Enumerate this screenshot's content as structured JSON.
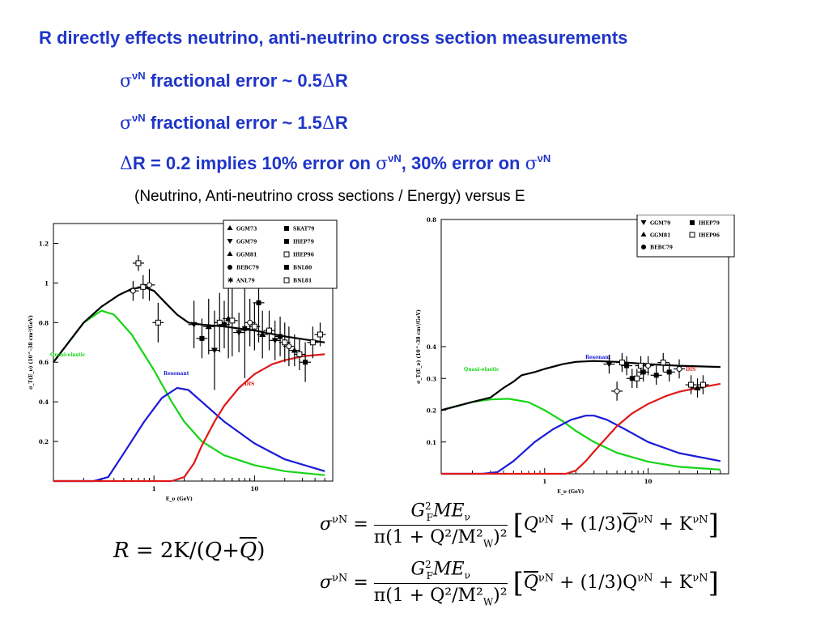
{
  "slide": {
    "title": "R directly effects neutrino, anti-neutrino cross section measurements",
    "bullet1": {
      "sigma": "σ",
      "sup": "νN",
      "text": " fractional error ~ 0.5",
      "delta": "Δ",
      "tail": "R"
    },
    "bullet2": {
      "sigma": "σ",
      "sup": "νN",
      "text": " fractional error ~ 1.5",
      "delta": "Δ",
      "tail": "R"
    },
    "bullet3": {
      "delta": "Δ",
      "text_a": "R = 0.2 implies 10% error on ",
      "sigma1": "σ",
      "sup1": "νN",
      "text_b": ", 30% error on ",
      "sigma2": "σ",
      "sup2": "νN"
    },
    "caption": "(Neutrino, Anti-neutrino cross sections / Energy) versus E"
  },
  "equations": {
    "R_lhs": "R",
    "R_eq": "= 2K/(",
    "R_Q": "Q",
    "R_plus": "+",
    "R_Qbar": "Q",
    "R_close": ")",
    "eq1_lhs": "σ",
    "eq1_sup": "νN",
    "eq1_num": "G",
    "eq1_num_sup": "2",
    "eq1_num_sub": "F",
    "eq1_num_rest": "ME",
    "eq1_num_nu": "ν",
    "eq1_den": "π(1 + Q²/M²",
    "eq1_den_sub": "W",
    "eq1_den_end": ")²",
    "eq1_bracket": "Q",
    "eq1_b_sup": "νN",
    "eq1_b_mid": " + (1/3)",
    "eq1_b_q": "Q",
    "eq1_b_sup2": "νN",
    "eq1_b_k": " + K",
    "eq1_b_sup3": "νN",
    "eq2_lhs": "σ",
    "eq2_sup": "νN",
    "eq2_bracket": "Q",
    "eq2_b_sup": "νN",
    "eq2_b_mid": " + (1/3)Q",
    "eq2_b_sup2": "νN",
    "eq2_b_k": " + K",
    "eq2_b_sup3": "νN"
  },
  "chart_data": [
    {
      "type": "line",
      "title": "",
      "xlabel": "E_ν (GeV)",
      "ylabel": "σ_T(E_ν) (10^-38 cm²/GeV)",
      "xscale": "log",
      "xlim": [
        0.1,
        60
      ],
      "ylim": [
        0,
        1.3
      ],
      "yticks": [
        "0.2",
        "0.4",
        "0.6",
        "0.8",
        "1",
        "1.2"
      ],
      "xticks": [
        "1",
        "10"
      ],
      "legend_position": "top-right",
      "legend": [
        "GGM73",
        "SKAT79",
        "GGM79",
        "IHEP79",
        "GGM81",
        "IHEP96",
        "BEBC79",
        "BNL80",
        "ANL79",
        "BNL81"
      ],
      "series": [
        {
          "name": "Quasi-elastic",
          "color": "#16d416",
          "x": [
            0.1,
            0.2,
            0.3,
            0.4,
            0.6,
            1,
            1.5,
            2,
            3,
            5,
            10,
            20,
            50
          ],
          "y": [
            0.6,
            0.8,
            0.86,
            0.84,
            0.74,
            0.56,
            0.4,
            0.3,
            0.2,
            0.13,
            0.08,
            0.05,
            0.03
          ]
        },
        {
          "name": "Resonant",
          "color": "#1a1ad8",
          "x": [
            0.1,
            0.25,
            0.35,
            0.5,
            0.8,
            1.2,
            1.7,
            2.2,
            3,
            5,
            10,
            20,
            50
          ],
          "y": [
            0,
            0,
            0.02,
            0.14,
            0.3,
            0.42,
            0.47,
            0.46,
            0.4,
            0.3,
            0.19,
            0.11,
            0.05
          ]
        },
        {
          "name": "DIS",
          "color": "#e01818",
          "x": [
            0.1,
            1.5,
            2,
            2.5,
            3,
            4,
            5,
            7,
            10,
            15,
            20,
            30,
            50
          ],
          "y": [
            0,
            0,
            0.02,
            0.09,
            0.18,
            0.3,
            0.38,
            0.47,
            0.54,
            0.59,
            0.61,
            0.63,
            0.64
          ]
        },
        {
          "name": "Total",
          "color": "#000000",
          "x": [
            0.1,
            0.2,
            0.3,
            0.45,
            0.6,
            0.8,
            1,
            1.3,
            1.7,
            2.2,
            3,
            5,
            10,
            20,
            50
          ],
          "y": [
            0.6,
            0.8,
            0.88,
            0.94,
            0.97,
            0.98,
            0.96,
            0.9,
            0.84,
            0.8,
            0.79,
            0.78,
            0.76,
            0.73,
            0.7
          ]
        }
      ],
      "points": {
        "x": [
          0.7,
          0.62,
          0.78,
          0.9,
          1.1,
          2.5,
          3.0,
          3.5,
          4,
          4.5,
          5,
          5.5,
          6,
          7,
          8,
          9,
          10,
          11,
          12,
          14,
          16,
          18,
          20,
          22,
          25,
          28,
          32,
          38,
          45
        ],
        "y": [
          1.1,
          0.96,
          0.98,
          0.99,
          0.8,
          0.79,
          0.72,
          0.78,
          0.66,
          0.8,
          0.79,
          0.82,
          0.81,
          0.75,
          0.77,
          0.8,
          0.78,
          0.9,
          0.74,
          0.76,
          0.71,
          0.73,
          0.7,
          0.68,
          0.66,
          0.64,
          0.6,
          0.7,
          0.74
        ],
        "yerr": [
          0.04,
          0.05,
          0.06,
          0.08,
          0.1,
          0.12,
          0.1,
          0.14,
          0.2,
          0.15,
          0.12,
          0.2,
          0.18,
          0.1,
          0.25,
          0.12,
          0.12,
          0.2,
          0.12,
          0.1,
          0.1,
          0.1,
          0.1,
          0.1,
          0.08,
          0.08,
          0.1,
          0.08,
          0.06
        ]
      },
      "annotations": [
        "Quasi-elastic",
        "Resonant",
        "DIS"
      ]
    },
    {
      "type": "line",
      "title": "",
      "xlabel": "E_ν (GeV)",
      "ylabel": "σ_T(E_ν) (10^-38 cm²/GeV)",
      "xscale": "log",
      "xlim": [
        0.1,
        60
      ],
      "ylim": [
        0,
        0.8
      ],
      "yticks": [
        "0.1",
        "0.2",
        "0.3",
        "0.4",
        "0.8"
      ],
      "xticks": [
        "1",
        "10"
      ],
      "legend_position": "top-right",
      "legend": [
        "GGM79",
        "IHEP79",
        "GGM81",
        "IHEP96",
        "BEBC79"
      ],
      "series": [
        {
          "name": "Quasi-elastic",
          "color": "#16d416",
          "x": [
            0.1,
            0.2,
            0.3,
            0.45,
            0.7,
            1,
            1.5,
            2,
            3,
            5,
            10,
            20,
            50
          ],
          "y": [
            0.2,
            0.226,
            0.234,
            0.236,
            0.225,
            0.2,
            0.165,
            0.135,
            0.1,
            0.066,
            0.038,
            0.022,
            0.013
          ]
        },
        {
          "name": "Resonant",
          "color": "#1a1ad8",
          "x": [
            0.1,
            0.25,
            0.35,
            0.5,
            0.8,
            1.2,
            1.8,
            2.5,
            3,
            4,
            6,
            10,
            20,
            50
          ],
          "y": [
            0,
            0,
            0.005,
            0.04,
            0.1,
            0.14,
            0.17,
            0.183,
            0.183,
            0.17,
            0.14,
            0.1,
            0.065,
            0.04
          ]
        },
        {
          "name": "DIS",
          "color": "#e01818",
          "x": [
            0.1,
            1.6,
            2,
            2.5,
            3,
            4,
            5,
            7,
            10,
            15,
            20,
            30,
            50
          ],
          "y": [
            0,
            0,
            0.01,
            0.04,
            0.07,
            0.115,
            0.15,
            0.19,
            0.22,
            0.245,
            0.258,
            0.27,
            0.283
          ]
        },
        {
          "name": "Total",
          "color": "#000000",
          "x": [
            0.1,
            0.2,
            0.3,
            0.4,
            0.5,
            0.6,
            0.8,
            1,
            1.5,
            2,
            3,
            5,
            10,
            20,
            50
          ],
          "y": [
            0.2,
            0.226,
            0.24,
            0.27,
            0.29,
            0.31,
            0.32,
            0.33,
            0.345,
            0.352,
            0.355,
            0.352,
            0.345,
            0.34,
            0.336
          ]
        }
      ],
      "points": {
        "x": [
          4.2,
          5,
          5.6,
          6.2,
          7,
          7.8,
          8.5,
          9,
          10,
          12,
          14,
          16,
          20,
          26,
          30,
          34
        ],
        "y": [
          0.345,
          0.26,
          0.35,
          0.34,
          0.3,
          0.3,
          0.34,
          0.32,
          0.34,
          0.31,
          0.35,
          0.32,
          0.33,
          0.28,
          0.27,
          0.28
        ]
      },
      "annotations": [
        "Quasi-elastic",
        "Resonant",
        "DIS"
      ]
    }
  ]
}
